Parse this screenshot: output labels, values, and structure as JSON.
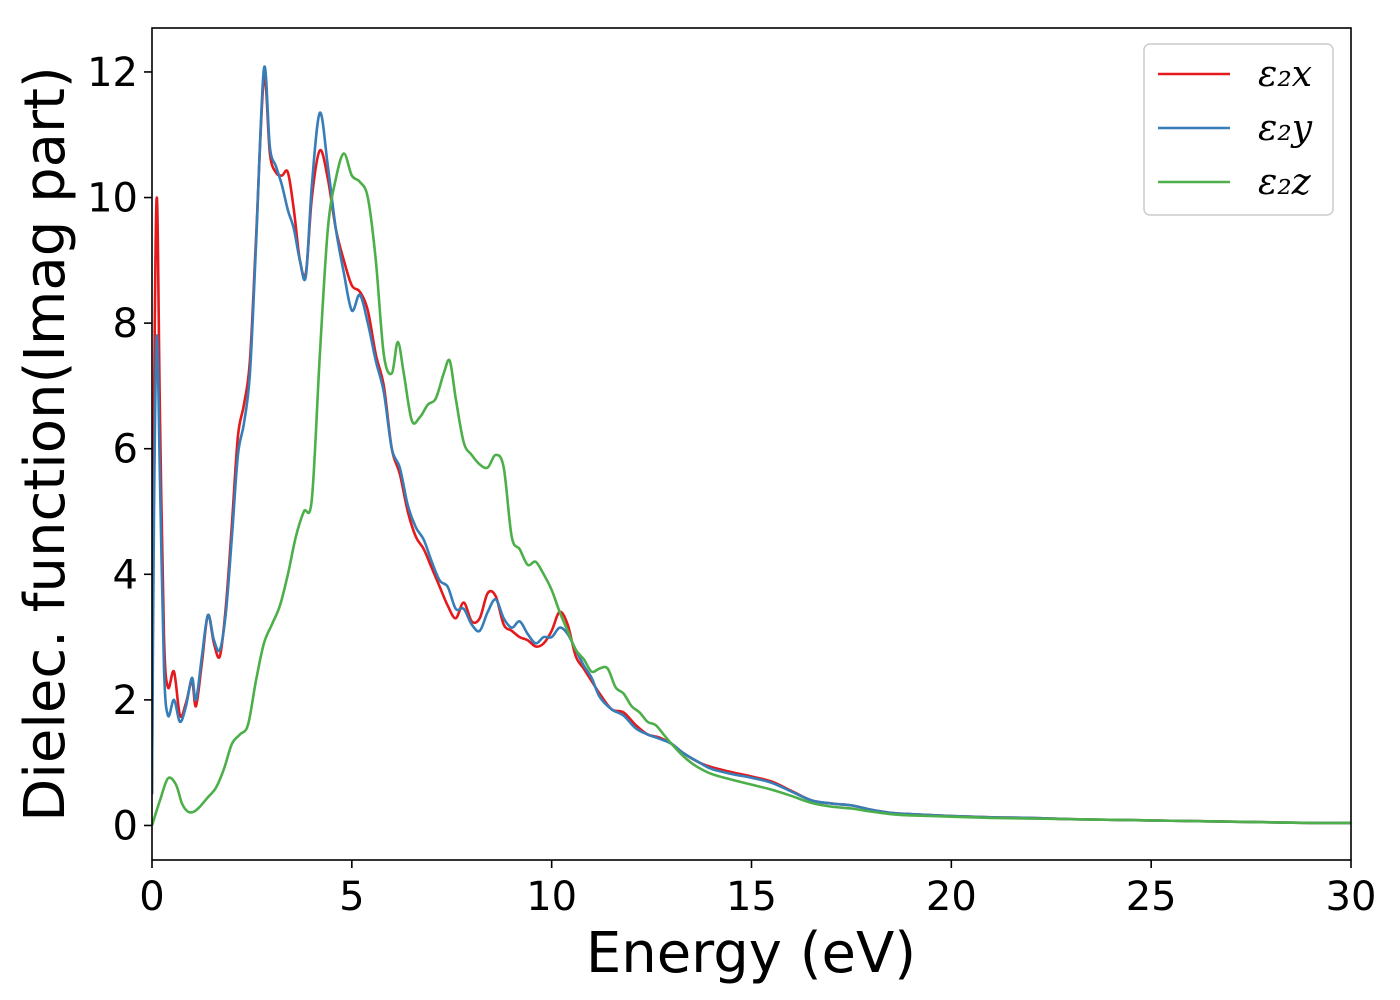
{
  "chart_data": {
    "type": "line",
    "title": "",
    "xlabel": "Energy (eV)",
    "ylabel": "Dielec. function(Imag part)",
    "xlim": [
      0,
      30
    ],
    "ylim": [
      -0.55,
      12.7
    ],
    "xticks": [
      0,
      5,
      10,
      15,
      20,
      25,
      30
    ],
    "yticks": [
      0,
      2,
      4,
      6,
      8,
      10,
      12
    ],
    "grid": false,
    "legend_position": "top-right",
    "series": [
      {
        "name": "ε₂x",
        "color": "#e41a1c",
        "x": [
          0.0,
          0.05,
          0.12,
          0.2,
          0.3,
          0.4,
          0.55,
          0.7,
          0.85,
          1.0,
          1.1,
          1.25,
          1.4,
          1.55,
          1.7,
          1.85,
          2.0,
          2.15,
          2.3,
          2.45,
          2.6,
          2.8,
          2.95,
          3.1,
          3.25,
          3.4,
          3.55,
          3.7,
          3.85,
          4.0,
          4.2,
          4.4,
          4.6,
          4.8,
          5.0,
          5.2,
          5.4,
          5.6,
          5.8,
          6.0,
          6.2,
          6.4,
          6.6,
          6.8,
          7.0,
          7.2,
          7.4,
          7.6,
          7.8,
          8.0,
          8.2,
          8.4,
          8.6,
          8.8,
          9.0,
          9.2,
          9.4,
          9.6,
          9.8,
          10.0,
          10.2,
          10.4,
          10.6,
          10.8,
          11.0,
          11.2,
          11.5,
          11.8,
          12.1,
          12.4,
          12.7,
          13.0,
          13.3,
          13.7,
          14.0,
          14.5,
          15.0,
          15.5,
          16.0,
          16.5,
          17.0,
          17.5,
          18.0,
          18.5,
          19.0,
          20.0,
          21.0,
          22.0,
          23.0,
          24.0,
          25.0,
          26.0,
          27.0,
          28.0,
          29.0,
          30.0
        ],
        "values": [
          0.5,
          6.5,
          10.0,
          6.5,
          3.0,
          2.2,
          2.45,
          1.75,
          1.95,
          2.3,
          1.9,
          2.6,
          3.35,
          2.9,
          2.7,
          3.5,
          4.8,
          6.2,
          6.7,
          7.4,
          9.3,
          11.9,
          10.7,
          10.4,
          10.35,
          10.4,
          9.8,
          9.0,
          8.8,
          10.0,
          10.75,
          10.3,
          9.5,
          9.0,
          8.6,
          8.5,
          8.2,
          7.5,
          7.0,
          6.0,
          5.6,
          5.0,
          4.6,
          4.4,
          4.1,
          3.8,
          3.5,
          3.3,
          3.55,
          3.25,
          3.3,
          3.7,
          3.65,
          3.2,
          3.1,
          3.0,
          2.95,
          2.85,
          2.9,
          3.1,
          3.4,
          3.2,
          2.7,
          2.5,
          2.3,
          2.1,
          1.85,
          1.8,
          1.6,
          1.45,
          1.4,
          1.3,
          1.15,
          1.0,
          0.93,
          0.85,
          0.78,
          0.7,
          0.55,
          0.4,
          0.35,
          0.32,
          0.25,
          0.2,
          0.18,
          0.15,
          0.13,
          0.12,
          0.1,
          0.09,
          0.08,
          0.07,
          0.06,
          0.05,
          0.04,
          0.04
        ]
      },
      {
        "name": "ε₂y",
        "color": "#377eb8",
        "x": [
          0.0,
          0.05,
          0.12,
          0.2,
          0.3,
          0.4,
          0.55,
          0.7,
          0.85,
          1.0,
          1.1,
          1.25,
          1.4,
          1.55,
          1.7,
          1.85,
          2.0,
          2.15,
          2.3,
          2.45,
          2.6,
          2.8,
          2.95,
          3.1,
          3.25,
          3.4,
          3.55,
          3.7,
          3.85,
          4.0,
          4.2,
          4.4,
          4.6,
          4.8,
          5.0,
          5.2,
          5.4,
          5.6,
          5.8,
          6.0,
          6.2,
          6.4,
          6.6,
          6.8,
          7.0,
          7.2,
          7.4,
          7.6,
          7.8,
          8.0,
          8.2,
          8.4,
          8.6,
          8.8,
          9.0,
          9.2,
          9.4,
          9.6,
          9.8,
          10.0,
          10.2,
          10.4,
          10.6,
          10.8,
          11.0,
          11.2,
          11.5,
          11.8,
          12.1,
          12.4,
          12.7,
          13.0,
          13.3,
          13.7,
          14.0,
          14.5,
          15.0,
          15.5,
          16.0,
          16.5,
          17.0,
          17.5,
          18.0,
          18.5,
          19.0,
          20.0,
          21.0,
          22.0,
          23.0,
          24.0,
          25.0,
          26.0,
          27.0,
          28.0,
          29.0,
          30.0
        ],
        "values": [
          0.5,
          5.0,
          7.8,
          5.5,
          2.5,
          1.75,
          2.0,
          1.65,
          1.9,
          2.35,
          2.0,
          2.7,
          3.35,
          2.95,
          2.8,
          3.4,
          4.6,
          5.9,
          6.4,
          7.2,
          9.2,
          12.05,
          10.8,
          10.5,
          10.2,
          9.8,
          9.5,
          9.0,
          8.75,
          10.2,
          11.35,
          10.5,
          9.5,
          8.8,
          8.2,
          8.45,
          8.0,
          7.4,
          6.9,
          6.0,
          5.7,
          5.1,
          4.75,
          4.55,
          4.2,
          3.9,
          3.8,
          3.45,
          3.45,
          3.2,
          3.1,
          3.4,
          3.6,
          3.3,
          3.15,
          3.25,
          3.05,
          2.9,
          3.0,
          3.0,
          3.15,
          3.05,
          2.8,
          2.55,
          2.35,
          2.05,
          1.85,
          1.75,
          1.55,
          1.45,
          1.38,
          1.3,
          1.15,
          1.0,
          0.9,
          0.82,
          0.76,
          0.68,
          0.54,
          0.4,
          0.35,
          0.32,
          0.25,
          0.2,
          0.18,
          0.15,
          0.13,
          0.12,
          0.1,
          0.09,
          0.08,
          0.07,
          0.06,
          0.05,
          0.04,
          0.04
        ]
      },
      {
        "name": "ε₂z",
        "color": "#4daf4a",
        "x": [
          0.0,
          0.2,
          0.4,
          0.6,
          0.75,
          0.9,
          1.05,
          1.2,
          1.4,
          1.6,
          1.8,
          2.0,
          2.2,
          2.4,
          2.6,
          2.8,
          3.0,
          3.2,
          3.4,
          3.6,
          3.8,
          4.0,
          4.2,
          4.4,
          4.6,
          4.8,
          5.0,
          5.2,
          5.4,
          5.6,
          5.8,
          6.0,
          6.15,
          6.3,
          6.5,
          6.7,
          6.9,
          7.1,
          7.3,
          7.45,
          7.6,
          7.8,
          8.0,
          8.2,
          8.4,
          8.6,
          8.8,
          9.0,
          9.2,
          9.4,
          9.6,
          9.8,
          10.0,
          10.2,
          10.4,
          10.6,
          10.8,
          11.0,
          11.2,
          11.4,
          11.6,
          11.8,
          12.0,
          12.2,
          12.4,
          12.6,
          12.8,
          13.0,
          13.3,
          13.6,
          14.0,
          14.5,
          15.0,
          15.5,
          16.0,
          16.5,
          17.0,
          17.5,
          18.0,
          18.5,
          19.0,
          20.0,
          21.0,
          22.0,
          23.0,
          24.0,
          25.0,
          26.0,
          27.0,
          28.0,
          29.0,
          30.0
        ],
        "values": [
          0.0,
          0.4,
          0.75,
          0.65,
          0.35,
          0.22,
          0.22,
          0.3,
          0.45,
          0.6,
          0.9,
          1.3,
          1.45,
          1.6,
          2.3,
          2.9,
          3.2,
          3.5,
          4.0,
          4.6,
          5.0,
          5.2,
          7.5,
          9.5,
          10.3,
          10.7,
          10.35,
          10.25,
          10.0,
          9.0,
          7.5,
          7.2,
          7.7,
          7.2,
          6.45,
          6.5,
          6.7,
          6.8,
          7.2,
          7.4,
          6.8,
          6.1,
          5.9,
          5.75,
          5.7,
          5.9,
          5.7,
          4.6,
          4.4,
          4.15,
          4.2,
          4.0,
          3.75,
          3.4,
          3.1,
          2.8,
          2.65,
          2.45,
          2.5,
          2.5,
          2.2,
          2.1,
          1.9,
          1.8,
          1.65,
          1.6,
          1.45,
          1.3,
          1.1,
          0.95,
          0.82,
          0.73,
          0.65,
          0.57,
          0.47,
          0.36,
          0.3,
          0.27,
          0.22,
          0.18,
          0.16,
          0.14,
          0.12,
          0.11,
          0.1,
          0.09,
          0.08,
          0.07,
          0.06,
          0.05,
          0.04,
          0.04
        ]
      }
    ]
  }
}
